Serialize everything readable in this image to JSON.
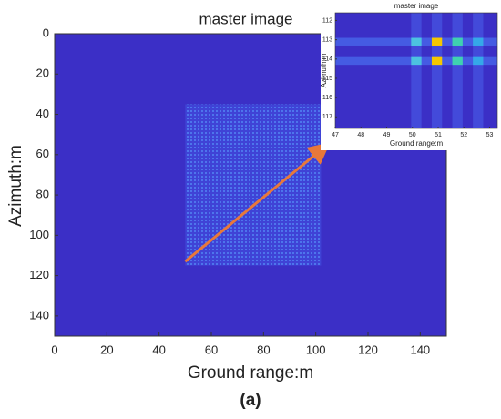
{
  "chart_data": {
    "type": "heatmap",
    "title": "master image",
    "xlabel": "Ground range:m",
    "ylabel": "Azimuth:m",
    "xlim": [
      0,
      150
    ],
    "ylim": [
      0,
      150
    ],
    "xticks": [
      0,
      20,
      40,
      60,
      80,
      100,
      120,
      140
    ],
    "yticks": [
      0,
      20,
      40,
      60,
      80,
      100,
      120,
      140
    ],
    "y_reversed": true,
    "color": "#3b2fc6",
    "inset": {
      "title": "master image",
      "xlabel": "Ground range:m",
      "ylabel": "Azimuth:m",
      "xlim": [
        47,
        53.3
      ],
      "ylim": [
        111.6,
        117.6
      ],
      "xticks": [
        47,
        48,
        49,
        50,
        51,
        52,
        53
      ],
      "yticks": [
        112,
        113,
        114,
        115,
        116,
        117
      ]
    },
    "caption": "(a)"
  }
}
